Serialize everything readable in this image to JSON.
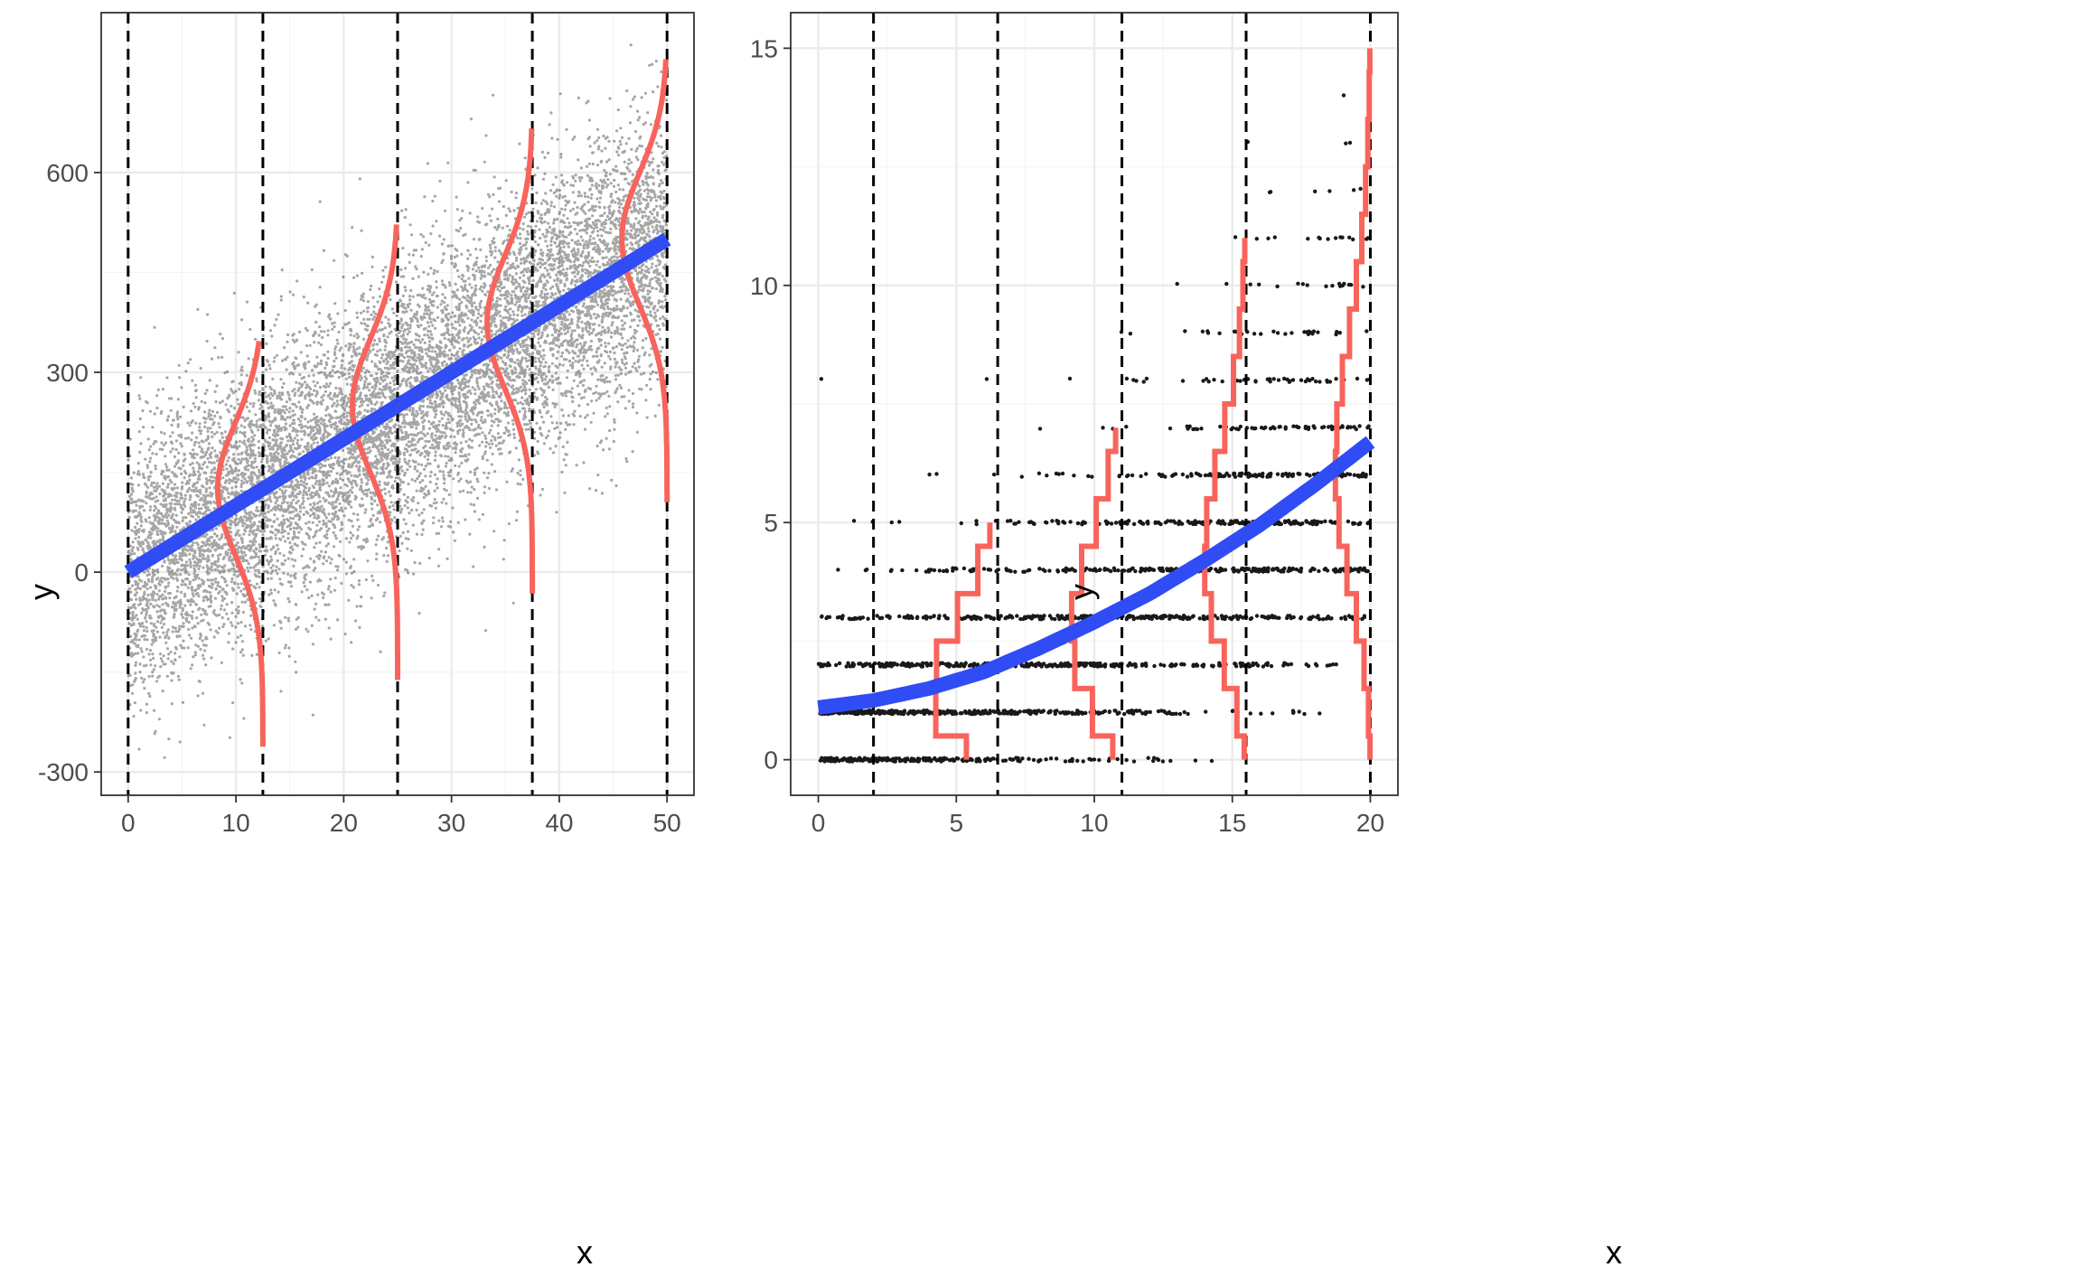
{
  "figure": {
    "left_panel": {
      "xlabel": "x",
      "ylabel": "y"
    },
    "right_panel": {
      "xlabel": "x",
      "ylabel": "y"
    }
  },
  "colors": {
    "points": "#000000",
    "fit_line": "#2f4cf5",
    "density_curve": "#f8645c",
    "guide_line": "#000000",
    "grid_major": "#ebebeb",
    "grid_minor": "#f4f4f4",
    "panel_border": "#333333"
  },
  "chart_data": [
    {
      "type": "scatter",
      "title": "",
      "xlabel": "x",
      "ylabel": "y",
      "xlim": [
        -2.5,
        52.5
      ],
      "ylim": [
        -335,
        840
      ],
      "xticks": [
        0,
        10,
        20,
        30,
        40,
        50
      ],
      "yticks": [
        -300,
        0,
        300,
        600
      ],
      "grid": true,
      "points": {
        "n": 10000,
        "x_range": [
          0,
          50
        ],
        "mean_slope": 10,
        "mean_intercept": 0,
        "sd": 100
      },
      "fit_line": {
        "x": [
          0,
          50
        ],
        "y": [
          0,
          500
        ]
      },
      "guides_x": [
        0,
        12.5,
        25,
        37.5,
        50
      ],
      "density_curves": [
        {
          "x_at": 12.5,
          "mean_y": 125,
          "y_range": [
            -262,
            347
          ]
        },
        {
          "x_at": 25,
          "mean_y": 250,
          "y_range": [
            -162,
            522
          ]
        },
        {
          "x_at": 37.5,
          "mean_y": 375,
          "y_range": [
            -32,
            666
          ]
        },
        {
          "x_at": 50,
          "mean_y": 500,
          "y_range": [
            105,
            770
          ]
        }
      ]
    },
    {
      "type": "scatter",
      "title": "",
      "xlabel": "x",
      "ylabel": "y",
      "xlim": [
        -1,
        21
      ],
      "ylim": [
        -0.75,
        15.75
      ],
      "xticks": [
        0,
        5,
        10,
        15,
        20
      ],
      "yticks": [
        0,
        5,
        10,
        15
      ],
      "grid": true,
      "points": {
        "n": 2000,
        "x_range": [
          0,
          20
        ],
        "distribution": "poisson",
        "values": "integer"
      },
      "fit_line": {
        "x": [
          0,
          2,
          4,
          6,
          8,
          10,
          12,
          14,
          16,
          18,
          20
        ],
        "y": [
          1.1,
          1.25,
          1.5,
          1.85,
          2.35,
          2.9,
          3.5,
          4.2,
          4.95,
          5.8,
          6.7
        ]
      },
      "guides_x": [
        2,
        6.5,
        11,
        15.5,
        20
      ],
      "step_curves": [
        {
          "x_at": 6.5,
          "y_max": 5
        },
        {
          "x_at": 11,
          "y_max": 7
        },
        {
          "x_at": 15.5,
          "y_max": 11
        },
        {
          "x_at": 20,
          "y_max": 15
        }
      ]
    }
  ]
}
